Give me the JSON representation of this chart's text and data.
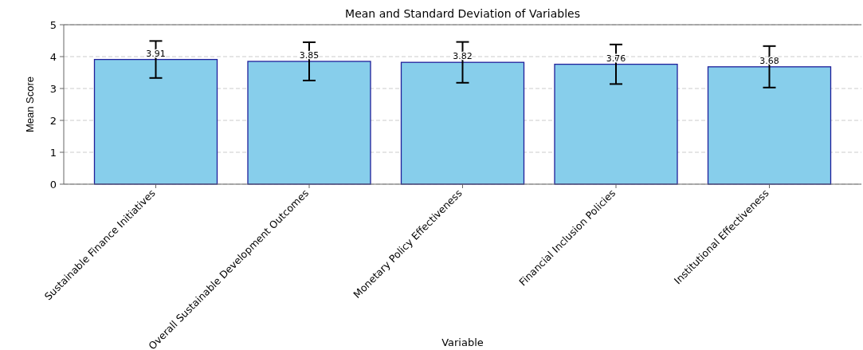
{
  "chart_data": {
    "type": "bar",
    "title": "Mean and Standard Deviation of Variables",
    "xlabel": "Variable",
    "ylabel": "Mean Score",
    "categories": [
      "Sustainable Finance Initiatives",
      "Overall Sustainable Development Outcomes",
      "Monetary Policy Effectiveness",
      "Financial Inclusion Policies",
      "Institutional Effectiveness"
    ],
    "values": [
      3.91,
      3.85,
      3.82,
      3.76,
      3.68
    ],
    "errors": [
      0.58,
      0.6,
      0.64,
      0.62,
      0.65
    ],
    "color": "#87ceeb",
    "ylim": [
      0,
      5
    ],
    "yticks": [
      0,
      1,
      2,
      3,
      4,
      5
    ],
    "grid": "y",
    "data_labels": true
  }
}
